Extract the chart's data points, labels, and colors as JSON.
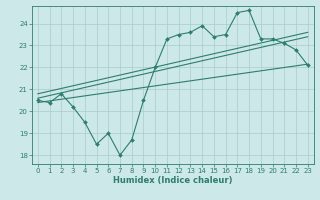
{
  "title": "",
  "xlabel": "Humidex (Indice chaleur)",
  "ylabel": "",
  "bg_color": "#cce8e8",
  "line_color": "#2e7d6e",
  "grid_color": "#aacccc",
  "xlim": [
    -0.5,
    23.5
  ],
  "ylim": [
    17.6,
    24.8
  ],
  "xticks": [
    0,
    1,
    2,
    3,
    4,
    5,
    6,
    7,
    8,
    9,
    10,
    11,
    12,
    13,
    14,
    15,
    16,
    17,
    18,
    19,
    20,
    21,
    22,
    23
  ],
  "yticks": [
    18,
    19,
    20,
    21,
    22,
    23,
    24
  ],
  "main_x": [
    0,
    1,
    2,
    3,
    4,
    5,
    6,
    7,
    8,
    9,
    10,
    11,
    12,
    13,
    14,
    15,
    16,
    17,
    18,
    19,
    20,
    21,
    22,
    23
  ],
  "main_y": [
    20.5,
    20.4,
    20.8,
    20.2,
    19.5,
    18.5,
    19.0,
    18.0,
    18.7,
    20.5,
    22.0,
    23.3,
    23.5,
    23.6,
    23.9,
    23.4,
    23.5,
    24.5,
    24.6,
    23.3,
    23.3,
    23.1,
    22.8,
    22.1
  ],
  "line1_x": [
    0,
    23
  ],
  "line1_y": [
    20.6,
    23.4
  ],
  "line2_x": [
    0,
    23
  ],
  "line2_y": [
    20.8,
    23.6
  ],
  "line3_x": [
    0,
    23
  ],
  "line3_y": [
    20.4,
    22.15
  ]
}
